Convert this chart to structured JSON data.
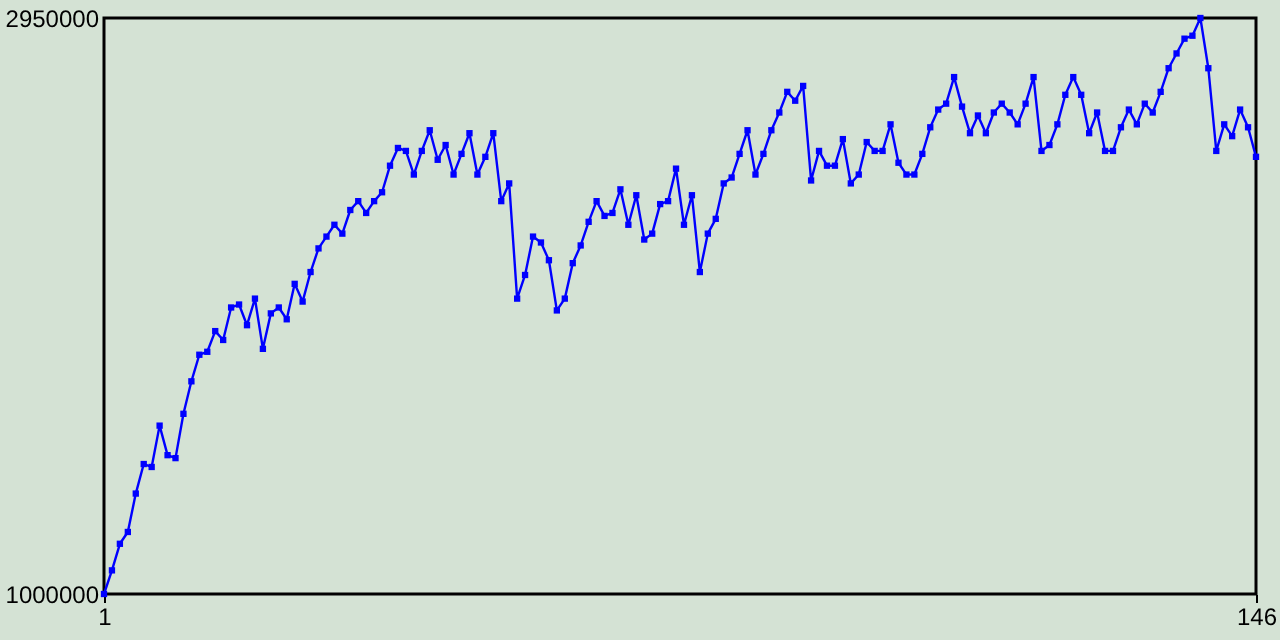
{
  "chart_data": {
    "type": "line",
    "marker": "square",
    "line_style": "solid",
    "xlim": [
      1,
      146
    ],
    "xticks": [
      1,
      146
    ],
    "ylim": [
      1000000,
      2950000
    ],
    "yticks": [
      1000000,
      2950000
    ],
    "x": [
      1,
      2,
      3,
      4,
      5,
      6,
      7,
      8,
      9,
      10,
      11,
      12,
      13,
      14,
      15,
      16,
      17,
      18,
      19,
      20,
      21,
      22,
      23,
      24,
      25,
      26,
      27,
      28,
      29,
      30,
      31,
      32,
      33,
      34,
      35,
      36,
      37,
      38,
      39,
      40,
      41,
      42,
      43,
      44,
      45,
      46,
      47,
      48,
      49,
      50,
      51,
      52,
      53,
      54,
      55,
      56,
      57,
      58,
      59,
      60,
      61,
      62,
      63,
      64,
      65,
      66,
      67,
      68,
      69,
      70,
      71,
      72,
      73,
      74,
      75,
      76,
      77,
      78,
      79,
      80,
      81,
      82,
      83,
      84,
      85,
      86,
      87,
      88,
      89,
      90,
      91,
      92,
      93,
      94,
      95,
      96,
      97,
      98,
      99,
      100,
      101,
      102,
      103,
      104,
      105,
      106,
      107,
      108,
      109,
      110,
      111,
      112,
      113,
      114,
      115,
      116,
      117,
      118,
      119,
      120,
      121,
      122,
      123,
      124,
      125,
      126,
      127,
      128,
      129,
      130,
      131,
      132,
      133,
      134,
      135,
      136,
      137,
      138,
      139,
      140,
      141,
      142,
      143,
      144,
      145,
      146
    ],
    "series": [
      {
        "color": "#0000ff",
        "values": [
          1000000,
          1080000,
          1170000,
          1210000,
          1340000,
          1440000,
          1430000,
          1570000,
          1470000,
          1460000,
          1610000,
          1720000,
          1810000,
          1820000,
          1890000,
          1860000,
          1970000,
          1980000,
          1910000,
          2000000,
          1830000,
          1950000,
          1970000,
          1930000,
          2050000,
          1990000,
          2090000,
          2170000,
          2210000,
          2250000,
          2220000,
          2300000,
          2330000,
          2290000,
          2330000,
          2360000,
          2450000,
          2510000,
          2500000,
          2420000,
          2500000,
          2570000,
          2470000,
          2520000,
          2420000,
          2490000,
          2560000,
          2420000,
          2480000,
          2560000,
          2330000,
          2390000,
          2000000,
          2080000,
          2210000,
          2190000,
          2130000,
          1960000,
          2000000,
          2120000,
          2180000,
          2260000,
          2330000,
          2280000,
          2290000,
          2370000,
          2250000,
          2350000,
          2200000,
          2220000,
          2320000,
          2330000,
          2440000,
          2250000,
          2350000,
          2090000,
          2220000,
          2270000,
          2390000,
          2410000,
          2490000,
          2570000,
          2420000,
          2490000,
          2570000,
          2630000,
          2700000,
          2670000,
          2720000,
          2400000,
          2500000,
          2450000,
          2450000,
          2540000,
          2390000,
          2420000,
          2530000,
          2500000,
          2500000,
          2590000,
          2460000,
          2420000,
          2420000,
          2490000,
          2580000,
          2640000,
          2660000,
          2750000,
          2650000,
          2560000,
          2620000,
          2560000,
          2630000,
          2660000,
          2630000,
          2590000,
          2660000,
          2750000,
          2500000,
          2520000,
          2590000,
          2690000,
          2750000,
          2690000,
          2560000,
          2630000,
          2500000,
          2500000,
          2580000,
          2640000,
          2590000,
          2660000,
          2630000,
          2700000,
          2780000,
          2830000,
          2880000,
          2890000,
          2950000,
          2780000,
          2500000,
          2590000,
          2550000,
          2640000,
          2580000,
          2480000
        ]
      }
    ]
  }
}
